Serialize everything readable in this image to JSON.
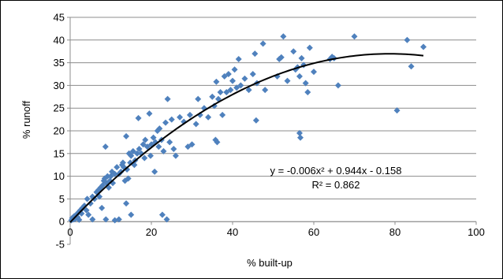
{
  "chart_data": {
    "type": "scatter",
    "title": "",
    "xlabel": "% built-up",
    "ylabel": "% runoff",
    "xlim": [
      0,
      100
    ],
    "ylim": [
      -5,
      45
    ],
    "x_ticks": [
      0,
      20,
      40,
      60,
      80,
      100
    ],
    "y_ticks": [
      -5,
      0,
      5,
      10,
      15,
      20,
      25,
      30,
      35,
      40,
      45
    ],
    "grid": "horizontal",
    "legend": "none",
    "marker_color": "#4F81BD",
    "trendline_color": "#000000",
    "trendline": {
      "type": "polynomial",
      "coefficients": [
        -0.006,
        0.944,
        -0.158
      ],
      "x_range": [
        0,
        87
      ],
      "equation_label": "y = -0.006x² + 0.944x - 0.158",
      "r2_label": "R² = 0.862"
    },
    "points": [
      [
        0.3,
        0.3
      ],
      [
        0.5,
        0.8
      ],
      [
        0.8,
        0.5
      ],
      [
        1.0,
        1.2
      ],
      [
        1.2,
        0.6
      ],
      [
        1.5,
        1.5
      ],
      [
        1.8,
        1.0
      ],
      [
        2.0,
        2.0
      ],
      [
        2.2,
        0.4
      ],
      [
        2.5,
        2.5
      ],
      [
        2.8,
        1.8
      ],
      [
        3.0,
        3.0
      ],
      [
        3.5,
        3.5
      ],
      [
        4.0,
        2.5
      ],
      [
        4.2,
        5.0
      ],
      [
        4.5,
        1.5
      ],
      [
        5.0,
        4.0
      ],
      [
        5.5,
        5.5
      ],
      [
        5.5,
        0.5
      ],
      [
        6.0,
        5.0
      ],
      [
        6.5,
        6.5
      ],
      [
        7.0,
        7.0
      ],
      [
        7.2,
        5.5
      ],
      [
        7.5,
        7.5
      ],
      [
        7.8,
        3.0
      ],
      [
        8.0,
        8.0
      ],
      [
        8.3,
        9.0
      ],
      [
        8.5,
        9.5
      ],
      [
        8.7,
        16.5
      ],
      [
        8.8,
        0.5
      ],
      [
        9.0,
        8.5
      ],
      [
        9.2,
        10.0
      ],
      [
        9.5,
        7.5
      ],
      [
        9.8,
        9.0
      ],
      [
        10.0,
        10.0
      ],
      [
        10.3,
        11.0
      ],
      [
        10.5,
        8.5
      ],
      [
        11.0,
        10.5
      ],
      [
        11.0,
        0.3
      ],
      [
        11.5,
        12.0
      ],
      [
        12.0,
        10.5
      ],
      [
        12.0,
        0.5
      ],
      [
        12.5,
        11.0
      ],
      [
        12.8,
        12.5
      ],
      [
        13.0,
        13.0
      ],
      [
        13.2,
        12.0
      ],
      [
        13.5,
        9.0
      ],
      [
        13.8,
        18.8
      ],
      [
        13.8,
        4.0
      ],
      [
        14.0,
        11.5
      ],
      [
        14.3,
        9.5
      ],
      [
        14.5,
        15.0
      ],
      [
        14.8,
        13.0
      ],
      [
        15.0,
        14.5
      ],
      [
        15.0,
        1.5
      ],
      [
        15.5,
        15.5
      ],
      [
        15.8,
        12.5
      ],
      [
        16.0,
        13.5
      ],
      [
        16.5,
        15.0
      ],
      [
        16.8,
        22.8
      ],
      [
        17.0,
        16.0
      ],
      [
        17.5,
        15.0
      ],
      [
        18.0,
        17.0
      ],
      [
        18.3,
        14.0
      ],
      [
        18.5,
        18.0
      ],
      [
        19.0,
        16.5
      ],
      [
        19.5,
        23.8
      ],
      [
        19.8,
        14.5
      ],
      [
        20.0,
        17.0
      ],
      [
        20.5,
        18.5
      ],
      [
        20.8,
        11.0
      ],
      [
        21.0,
        17.5
      ],
      [
        21.5,
        20.0
      ],
      [
        21.8,
        16.5
      ],
      [
        22.0,
        20.5
      ],
      [
        22.5,
        18.0
      ],
      [
        22.7,
        1.5
      ],
      [
        23.0,
        15.5
      ],
      [
        23.5,
        21.8
      ],
      [
        23.8,
        0.5
      ],
      [
        24.0,
        27.0
      ],
      [
        24.5,
        17.5
      ],
      [
        25.0,
        22.5
      ],
      [
        25.5,
        16.0
      ],
      [
        26.0,
        14.5
      ],
      [
        27.0,
        23.0
      ],
      [
        28.0,
        22.0
      ],
      [
        29.0,
        16.5
      ],
      [
        29.5,
        23.5
      ],
      [
        30.0,
        17.0
      ],
      [
        31.0,
        21.5
      ],
      [
        31.5,
        27.0
      ],
      [
        32.0,
        23.5
      ],
      [
        33.0,
        25.0
      ],
      [
        34.0,
        23.0
      ],
      [
        35.0,
        27.5
      ],
      [
        35.5,
        25.5
      ],
      [
        35.8,
        18.0
      ],
      [
        36.0,
        30.8
      ],
      [
        36.2,
        17.5
      ],
      [
        36.5,
        27.0
      ],
      [
        37.0,
        28.5
      ],
      [
        37.5,
        23.5
      ],
      [
        38.0,
        32.0
      ],
      [
        38.5,
        28.5
      ],
      [
        39.0,
        32.5
      ],
      [
        39.5,
        29.0
      ],
      [
        40.0,
        31.0
      ],
      [
        40.5,
        33.5
      ],
      [
        41.0,
        29.5
      ],
      [
        41.5,
        35.8
      ],
      [
        42.0,
        30.0
      ],
      [
        43.0,
        31.5
      ],
      [
        44.0,
        29.0
      ],
      [
        45.0,
        32.5
      ],
      [
        45.5,
        37.0
      ],
      [
        45.8,
        22.3
      ],
      [
        46.0,
        30.5
      ],
      [
        47.5,
        39.2
      ],
      [
        48.0,
        29.0
      ],
      [
        51.0,
        32.0
      ],
      [
        51.5,
        35.8
      ],
      [
        52.0,
        36.2
      ],
      [
        52.5,
        40.8
      ],
      [
        53.5,
        31.0
      ],
      [
        55.0,
        37.5
      ],
      [
        55.5,
        33.5
      ],
      [
        56.0,
        34.0
      ],
      [
        56.5,
        32.0
      ],
      [
        56.5,
        19.5
      ],
      [
        56.7,
        18.5
      ],
      [
        57.0,
        36.0
      ],
      [
        57.5,
        34.5
      ],
      [
        58.0,
        30.5
      ],
      [
        58.5,
        28.5
      ],
      [
        59.0,
        38.3
      ],
      [
        60.0,
        33.0
      ],
      [
        64.0,
        35.8
      ],
      [
        64.5,
        36.3
      ],
      [
        65.0,
        36.0
      ],
      [
        66.0,
        30.0
      ],
      [
        70.0,
        40.8
      ],
      [
        80.5,
        24.5
      ],
      [
        83.0,
        40.0
      ],
      [
        84.0,
        34.2
      ],
      [
        87.0,
        38.5
      ]
    ]
  }
}
